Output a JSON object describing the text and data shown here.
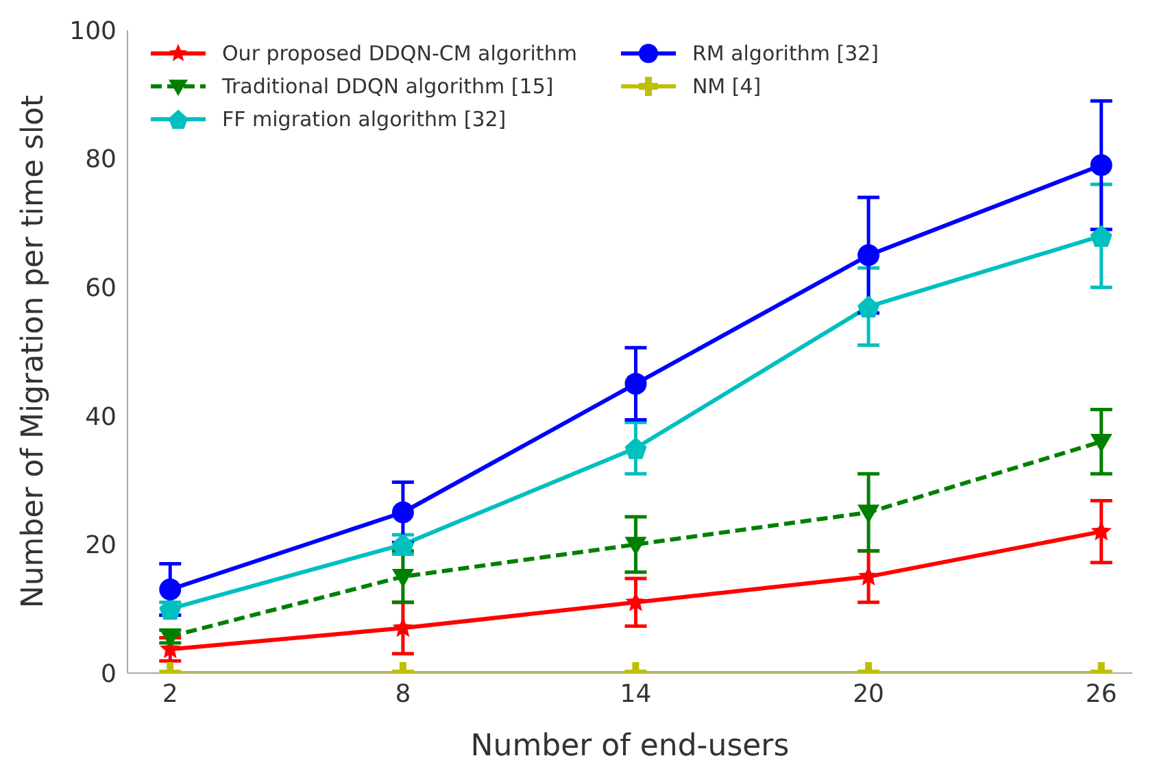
{
  "chart_data": {
    "type": "line",
    "xlabel": "Number of end-users",
    "ylabel": "Number of Migration per time slot",
    "x": [
      2,
      8,
      14,
      20,
      26
    ],
    "series": [
      {
        "name": "Our proposed DDQN-CM algorithm",
        "color": "#ff0000",
        "marker": "star",
        "line_style": "solid",
        "values": [
          3.7,
          7,
          11,
          15,
          22
        ],
        "errors": [
          1.8,
          4,
          3.7,
          4,
          4.8
        ]
      },
      {
        "name": "Traditional DDQN algorithm [15]",
        "color": "#008000",
        "marker": "triangle",
        "line_style": "dashed",
        "values": [
          5.7,
          15,
          20,
          25,
          36
        ],
        "errors": [
          1,
          4,
          4.3,
          6,
          5
        ]
      },
      {
        "name": "FF migration algorithm [32]",
        "color": "#00bfbf",
        "marker": "diamond",
        "line_style": "solid",
        "values": [
          10,
          20,
          35,
          57,
          68
        ],
        "errors": [
          1,
          1.5,
          4,
          6,
          8
        ]
      },
      {
        "name": "RM algorithm [32]",
        "color": "#0000ff",
        "marker": "circle",
        "line_style": "solid",
        "values": [
          13,
          25,
          45,
          65,
          79
        ],
        "errors": [
          4,
          4.7,
          5.6,
          9,
          10
        ]
      },
      {
        "name": "NM [4]",
        "color": "#bfbf00",
        "marker": "cross",
        "line_style": "solid",
        "values": [
          0,
          0,
          0,
          0,
          0
        ]
      }
    ],
    "xlim": [
      0.9,
      26.8
    ],
    "xticks": [
      2,
      8,
      14,
      20,
      26
    ],
    "ylim": [
      0,
      100
    ],
    "yticks": [
      0,
      20,
      40,
      60,
      80,
      100
    ],
    "grid": false,
    "legend": "top left"
  }
}
